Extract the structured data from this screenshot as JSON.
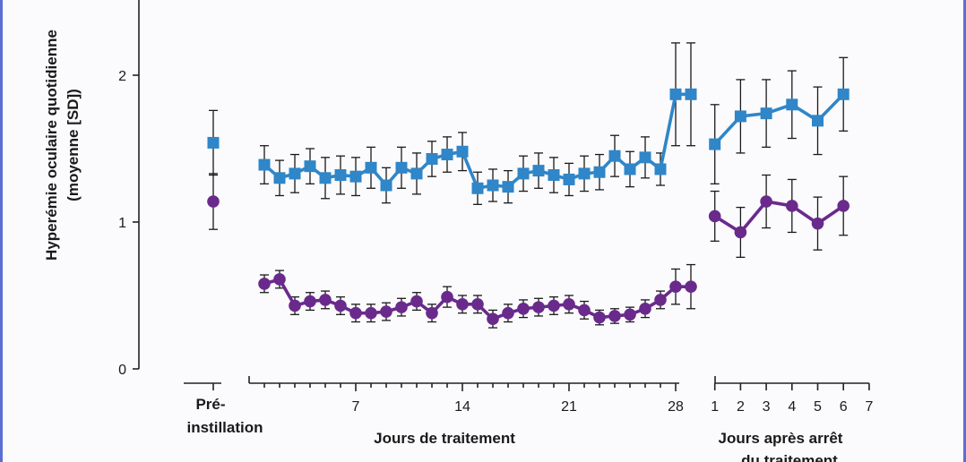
{
  "colors": {
    "blue": "#2f86c8",
    "purple": "#6a2a8c",
    "axis": "#222222",
    "frame": "#5b6fd3"
  },
  "chart_data": {
    "type": "line",
    "ylabel_line1": "Hyperémie oculaire quotidienne",
    "ylabel_line2": "(moyenne [SD])",
    "ylim": [
      0,
      2.5
    ],
    "y_ticks": [
      "0",
      "1",
      "2"
    ],
    "groups": {
      "pre": {
        "label_line1": "Pré-",
        "label_line2": "instillation"
      },
      "treatment": {
        "label": "Jours de traitement",
        "tick_labels": [
          "7",
          "14",
          "21",
          "28"
        ]
      },
      "after": {
        "label_line1": "Jours après arrêt",
        "label_line2": "du traitement",
        "tick_labels": [
          "1",
          "2",
          "3",
          "4",
          "5",
          "6",
          "7"
        ]
      }
    },
    "series": [
      {
        "marker": "square",
        "color": "#2f86c8",
        "pre": {
          "mean": 1.54,
          "sd": 0.22
        },
        "treatment": {
          "days": [
            1,
            2,
            3,
            4,
            5,
            6,
            7,
            8,
            9,
            10,
            11,
            12,
            13,
            14,
            15,
            16,
            17,
            18,
            19,
            20,
            21,
            22,
            23,
            24,
            25,
            26,
            27,
            28,
            29
          ],
          "mean": [
            1.39,
            1.3,
            1.33,
            1.38,
            1.3,
            1.32,
            1.31,
            1.37,
            1.25,
            1.37,
            1.33,
            1.43,
            1.46,
            1.48,
            1.23,
            1.25,
            1.24,
            1.33,
            1.35,
            1.32,
            1.29,
            1.33,
            1.34,
            1.45,
            1.36,
            1.44,
            1.36,
            1.87,
            1.87
          ],
          "sd": [
            0.13,
            0.12,
            0.13,
            0.12,
            0.14,
            0.13,
            0.13,
            0.14,
            0.12,
            0.14,
            0.14,
            0.12,
            0.12,
            0.13,
            0.11,
            0.11,
            0.11,
            0.12,
            0.12,
            0.12,
            0.11,
            0.12,
            0.12,
            0.14,
            0.12,
            0.14,
            0.11,
            0.35,
            0.35
          ]
        },
        "after": {
          "days": [
            1,
            2,
            3,
            4,
            5,
            6
          ],
          "mean": [
            1.53,
            1.72,
            1.74,
            1.8,
            1.69,
            1.87
          ],
          "sd": [
            0.27,
            0.25,
            0.23,
            0.23,
            0.23,
            0.25
          ]
        }
      },
      {
        "marker": "circle",
        "color": "#6a2a8c",
        "pre": {
          "mean": 1.14,
          "sd": 0.19
        },
        "treatment": {
          "days": [
            1,
            2,
            3,
            4,
            5,
            6,
            7,
            8,
            9,
            10,
            11,
            12,
            13,
            14,
            15,
            16,
            17,
            18,
            19,
            20,
            21,
            22,
            23,
            24,
            25,
            26,
            27,
            28,
            29
          ],
          "mean": [
            0.58,
            0.61,
            0.43,
            0.46,
            0.47,
            0.43,
            0.38,
            0.38,
            0.39,
            0.42,
            0.46,
            0.38,
            0.49,
            0.44,
            0.44,
            0.34,
            0.38,
            0.41,
            0.42,
            0.43,
            0.44,
            0.4,
            0.35,
            0.36,
            0.37,
            0.41,
            0.47,
            0.56,
            0.56
          ],
          "sd": [
            0.06,
            0.06,
            0.06,
            0.06,
            0.06,
            0.06,
            0.06,
            0.06,
            0.06,
            0.06,
            0.06,
            0.06,
            0.07,
            0.06,
            0.06,
            0.06,
            0.06,
            0.06,
            0.06,
            0.06,
            0.06,
            0.06,
            0.05,
            0.05,
            0.05,
            0.06,
            0.06,
            0.12,
            0.15
          ]
        },
        "after": {
          "days": [
            1,
            2,
            3,
            4,
            5,
            6
          ],
          "mean": [
            1.04,
            0.93,
            1.14,
            1.11,
            0.99,
            1.11
          ],
          "sd": [
            0.17,
            0.17,
            0.18,
            0.18,
            0.18,
            0.2
          ]
        }
      }
    ]
  }
}
